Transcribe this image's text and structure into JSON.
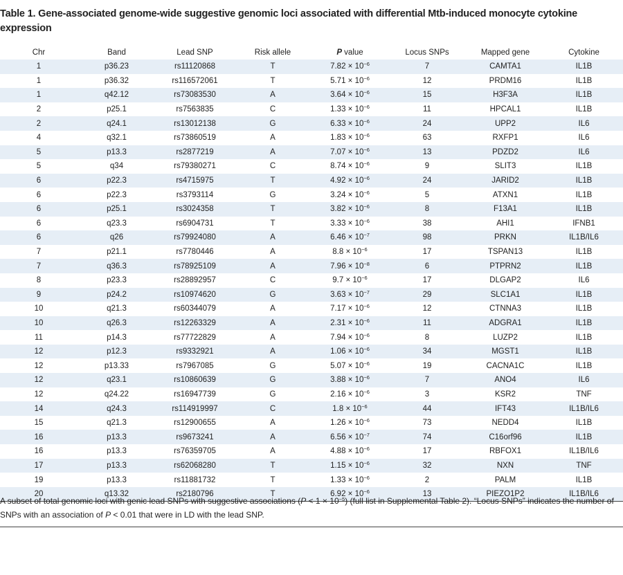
{
  "title": "Table 1. Gene-associated genome-wide suggestive genomic loci associated with differential Mtb-induced monocyte cytokine expression",
  "table": {
    "columns": [
      "Chr",
      "Band",
      "Lead SNP",
      "Risk allele",
      {
        "em": "P",
        "rest": " value"
      },
      "Locus SNPs",
      "Mapped gene",
      "Cytokine"
    ],
    "rows": [
      [
        1,
        "p36.23",
        "rs11120868",
        "T",
        {
          "base": "7.82 × 10",
          "exp": "−6"
        },
        7,
        "CAMTA1",
        "IL1B"
      ],
      [
        1,
        "p36.32",
        "rs116572061",
        "T",
        {
          "base": "5.71 × 10",
          "exp": "−6"
        },
        12,
        "PRDM16",
        "IL1B"
      ],
      [
        1,
        "q42.12",
        "rs73083530",
        "A",
        {
          "base": "3.64 × 10",
          "exp": "−6"
        },
        15,
        "H3F3A",
        "IL1B"
      ],
      [
        2,
        "p25.1",
        "rs7563835",
        "C",
        {
          "base": "1.33 × 10",
          "exp": "−6"
        },
        11,
        "HPCAL1",
        "IL1B"
      ],
      [
        2,
        "q24.1",
        "rs13012138",
        "G",
        {
          "base": "6.33 × 10",
          "exp": "−6"
        },
        24,
        "UPP2",
        "IL6"
      ],
      [
        4,
        "q32.1",
        "rs73860519",
        "A",
        {
          "base": "1.83 × 10",
          "exp": "−6"
        },
        63,
        "RXFP1",
        "IL6"
      ],
      [
        5,
        "p13.3",
        "rs2877219",
        "A",
        {
          "base": "7.07 × 10",
          "exp": "−6"
        },
        13,
        "PDZD2",
        "IL6"
      ],
      [
        5,
        "q34",
        "rs79380271",
        "C",
        {
          "base": "8.74 × 10",
          "exp": "−6"
        },
        9,
        "SLIT3",
        "IL1B"
      ],
      [
        6,
        "p22.3",
        "rs4715975",
        "T",
        {
          "base": "4.92 × 10",
          "exp": "−6"
        },
        24,
        "JARID2",
        "IL1B"
      ],
      [
        6,
        "p22.3",
        "rs3793114",
        "G",
        {
          "base": "3.24 × 10",
          "exp": "−6"
        },
        5,
        "ATXN1",
        "IL1B"
      ],
      [
        6,
        "p25.1",
        "rs3024358",
        "T",
        {
          "base": "3.82 × 10",
          "exp": "−6"
        },
        8,
        "F13A1",
        "IL1B"
      ],
      [
        6,
        "q23.3",
        "rs6904731",
        "T",
        {
          "base": "3.33 × 10",
          "exp": "−6"
        },
        38,
        "AHI1",
        "IFNB1"
      ],
      [
        6,
        "q26",
        "rs79924080",
        "A",
        {
          "base": "6.46 × 10",
          "exp": "−7"
        },
        98,
        "PRKN",
        "IL1B/IL6"
      ],
      [
        7,
        "p21.1",
        "rs7780446",
        "A",
        {
          "base": "8.8 × 10",
          "exp": "−6"
        },
        17,
        "TSPAN13",
        "IL1B"
      ],
      [
        7,
        "q36.3",
        "rs78925109",
        "A",
        {
          "base": "7.96 × 10",
          "exp": "−8"
        },
        6,
        "PTPRN2",
        "IL1B"
      ],
      [
        8,
        "p23.3",
        "rs28892957",
        "C",
        {
          "base": "9.7 × 10",
          "exp": "−6"
        },
        17,
        "DLGAP2",
        "IL6"
      ],
      [
        9,
        "p24.2",
        "rs10974620",
        "G",
        {
          "base": "3.63 × 10",
          "exp": "−7"
        },
        29,
        "SLC1A1",
        "IL1B"
      ],
      [
        10,
        "q21.3",
        "rs60344079",
        "A",
        {
          "base": "7.17 × 10",
          "exp": "−6"
        },
        12,
        "CTNNA3",
        "IL1B"
      ],
      [
        10,
        "q26.3",
        "rs12263329",
        "A",
        {
          "base": "2.31 × 10",
          "exp": "−6"
        },
        11,
        "ADGRA1",
        "IL1B"
      ],
      [
        11,
        "p14.3",
        "rs77722829",
        "A",
        {
          "base": "7.94 × 10",
          "exp": "−6"
        },
        8,
        "LUZP2",
        "IL1B"
      ],
      [
        12,
        "p12.3",
        "rs9332921",
        "A",
        {
          "base": "1.06 × 10",
          "exp": "−6"
        },
        34,
        "MGST1",
        "IL1B"
      ],
      [
        12,
        "p13.33",
        "rs7967085",
        "G",
        {
          "base": "5.07 × 10",
          "exp": "−6"
        },
        19,
        "CACNA1C",
        "IL1B"
      ],
      [
        12,
        "q23.1",
        "rs10860639",
        "G",
        {
          "base": "3.88 × 10",
          "exp": "−6"
        },
        7,
        "ANO4",
        "IL6"
      ],
      [
        12,
        "q24.22",
        "rs16947739",
        "G",
        {
          "base": "2.16 × 10",
          "exp": "−6"
        },
        3,
        "KSR2",
        "TNF"
      ],
      [
        14,
        "q24.3",
        "rs114919997",
        "C",
        {
          "base": "1.8 × 10",
          "exp": "−6"
        },
        44,
        "IFT43",
        "IL1B/IL6"
      ],
      [
        15,
        "q21.3",
        "rs12900655",
        "A",
        {
          "base": "1.26 × 10",
          "exp": "−6"
        },
        73,
        "NEDD4",
        "IL1B"
      ],
      [
        16,
        "p13.3",
        "rs9673241",
        "A",
        {
          "base": "6.56 × 10",
          "exp": "−7"
        },
        74,
        "C16orf96",
        "IL1B"
      ],
      [
        16,
        "p13.3",
        "rs76359705",
        "A",
        {
          "base": "4.88 × 10",
          "exp": "−6"
        },
        17,
        "RBFOX1",
        "IL1B/IL6"
      ],
      [
        17,
        "p13.3",
        "rs62068280",
        "T",
        {
          "base": "1.15 × 10",
          "exp": "−6"
        },
        32,
        "NXN",
        "TNF"
      ],
      [
        19,
        "p13.3",
        "rs11881732",
        "T",
        {
          "base": "1.33 × 10",
          "exp": "−6"
        },
        2,
        "PALM",
        "IL1B"
      ],
      [
        20,
        "q13.32",
        "rs2180796",
        "T",
        {
          "base": "6.92 × 10",
          "exp": "−6"
        },
        13,
        "PIEZO1P2",
        "IL1B/IL6"
      ]
    ]
  },
  "footnote": [
    "A subset of total genomic loci with genic lead SNPs with suggestive associations (",
    "P",
    " < 1 × 10",
    "−5",
    ") (full list in Supplemental Table 2). “Locus SNPs” indicates the number of SNPs with an association of ",
    "P",
    " < 0.01 that were in LD with the lead SNP."
  ]
}
